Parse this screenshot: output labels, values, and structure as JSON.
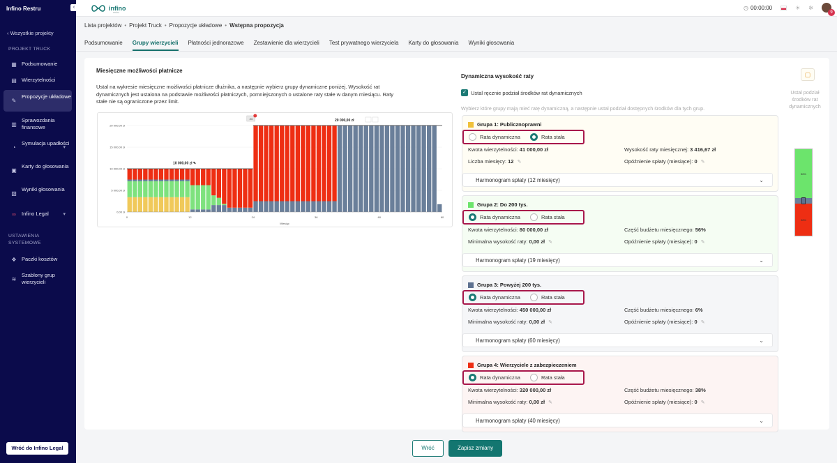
{
  "sidebar": {
    "app_title": "Infino Restru",
    "back_link": "‹ Wszystkie projekty",
    "section_project": "PROJEKT TRUCK",
    "items": [
      {
        "label": "Podsumowanie",
        "icon": "grid-icon"
      },
      {
        "label": "Wierzytelności",
        "icon": "file-icon"
      },
      {
        "label": "Propozycje układowe",
        "icon": "pen-icon"
      },
      {
        "label": "Sprawozdania finansowe",
        "icon": "chart-icon"
      },
      {
        "label": "Symulacja upadłości",
        "icon": "gauge-icon"
      },
      {
        "label": "Karty do głosowania",
        "icon": "ballot-icon"
      },
      {
        "label": "Wyniki głosowania",
        "icon": "results-icon"
      },
      {
        "label": "Infino Legal",
        "icon": "infinity-icon"
      }
    ],
    "section_system": "USTAWIENIA SYSTEMOWE",
    "system_items": [
      {
        "label": "Paczki kosztów",
        "icon": "package-icon"
      },
      {
        "label": "Szablony grup wierzycieli",
        "icon": "layers-icon"
      }
    ],
    "footer_button": "Wróć do Infino Legal"
  },
  "topbar": {
    "logo_text": "infino",
    "logo_sub": "restru",
    "timer": "00:00:00",
    "notifications_count": "9"
  },
  "breadcrumb": [
    "Lista projektów",
    "Projekt Truck",
    "Propozycje układowe",
    "Wstępna propozycja"
  ],
  "tabs": [
    "Podsumowanie",
    "Grupy wierzycieli",
    "Płatności jednorazowe",
    "Zestawienie dla wierzycieli",
    "Test prywatnego wierzyciela",
    "Karty do głosowania",
    "Wyniki głosowania"
  ],
  "left": {
    "heading": "Miesięczne możliwości płatnicze",
    "description": "Ustal na wykresie miesięczne możliwości płatnicze dłużnika, a następnie wybierz grupy dynamiczne poniżej. Wysokość rat dynamicznych jest ustalona na podstawie możliwości płatniczych, pomniejszonych o ustalone raty stałe w danym miesiącu. Raty stałe nie są ograniczone przez limit."
  },
  "chart_data": {
    "type": "bar",
    "stacked": true,
    "xlabel": "Miesiąc",
    "ylim": [
      0,
      20000
    ],
    "yticks": [
      "0,00 zł",
      "5 000,00 zł",
      "10 000,00 zł",
      "15 000,00 zł",
      "20 000,00 zł"
    ],
    "xticks": [
      0,
      12,
      24,
      36,
      48,
      60
    ],
    "capacity_labels": [
      {
        "text": "10 000,00 zł",
        "months": [
          1,
          24
        ],
        "value": 10000
      },
      {
        "text": "20 000,00 zł",
        "months": [
          25,
          60
        ],
        "value": 20000
      }
    ],
    "marker_label": "24",
    "colors": {
      "group1": "#f0c95a",
      "group2": "#7ee27e",
      "group3": "#6a7f9a",
      "group4": "#ee2e13"
    },
    "series": [
      {
        "name": "Grupa 1",
        "values_by_month": "3 416,67 zł for months 1–12"
      },
      {
        "name": "Grupa 2",
        "share": 0.56
      },
      {
        "name": "Grupa 3",
        "share": 0.06
      },
      {
        "name": "Grupa 4",
        "share": 0.38
      }
    ]
  },
  "right": {
    "heading": "Dynamiczna wysokość raty",
    "checkbox_label": "Ustal ręcznie podział środków rat dynamicznych",
    "hint": "Wybierz które grupy mają mieć ratę dynamiczną, a następnie ustal podział dostępnych środków dla tych grup.",
    "radio_dynamic": "Rata dynamiczna",
    "radio_fixed": "Rata stała",
    "groups": [
      {
        "title": "Grupa 1: Publicznoprawni",
        "color": "#f0c13a",
        "bg": "#fffdf4",
        "selected": "fixed",
        "k1": "Kwota wierzytelności:",
        "v1": "41 000,00 zł",
        "k2": "Wysokość raty miesięcznej:",
        "v2": "3 416,67 zł",
        "k3": "Liczba miesięcy:",
        "v3": "12",
        "k4": "Opóźnienie spłaty (miesiące):",
        "v4": "0",
        "schedule": "Harmonogram spłaty (12 miesięcy)"
      },
      {
        "title": "Grupa 2: Do 200 tys.",
        "color": "#6ce46c",
        "bg": "#f5fdf3",
        "selected": "dynamic",
        "k1": "Kwota wierzytelności:",
        "v1": "80 000,00 zł",
        "k2": "Część budżetu miesięcznego:",
        "v2": "56%",
        "k3": "Minimalna wysokość raty:",
        "v3": "0,00 zł",
        "k4": "Opóźnienie spłaty (miesiące):",
        "v4": "0",
        "schedule": "Harmonogram spłaty (19 miesięcy)"
      },
      {
        "title": "Grupa 3: Powyżej 200 tys.",
        "color": "#5d7190",
        "bg": "#f5f6f8",
        "selected": "dynamic",
        "k1": "Kwota wierzytelności:",
        "v1": "450 000,00 zł",
        "k2": "Część budżetu miesięcznego:",
        "v2": "6%",
        "k3": "Minimalna wysokość raty:",
        "v3": "0,00 zł",
        "k4": "Opóźnienie spłaty (miesiące):",
        "v4": "0",
        "schedule": "Harmonogram spłaty (60 miesięcy)"
      },
      {
        "title": "Grupa 4: Wierzyciele z zabezpieczeniem",
        "color": "#ee2e13",
        "bg": "#fdf4f3",
        "selected": "dynamic",
        "k1": "Kwota wierzytelności:",
        "v1": "320 000,00 zł",
        "k2": "Część budżetu miesięcznego:",
        "v2": "38%",
        "k3": "Minimalna wysokość raty:",
        "v3": "0,00 zł",
        "k4": "Opóźnienie spłaty (miesiące):",
        "v4": "0",
        "schedule": "Harmonogram spłaty (40 miesięcy)"
      }
    ],
    "mini": {
      "label": "Ustal podział środków rat dynamicznych",
      "green_pct": "56%",
      "red_pct": "38%"
    }
  },
  "footer": {
    "back": "Wróć",
    "save": "Zapisz zmiany"
  }
}
